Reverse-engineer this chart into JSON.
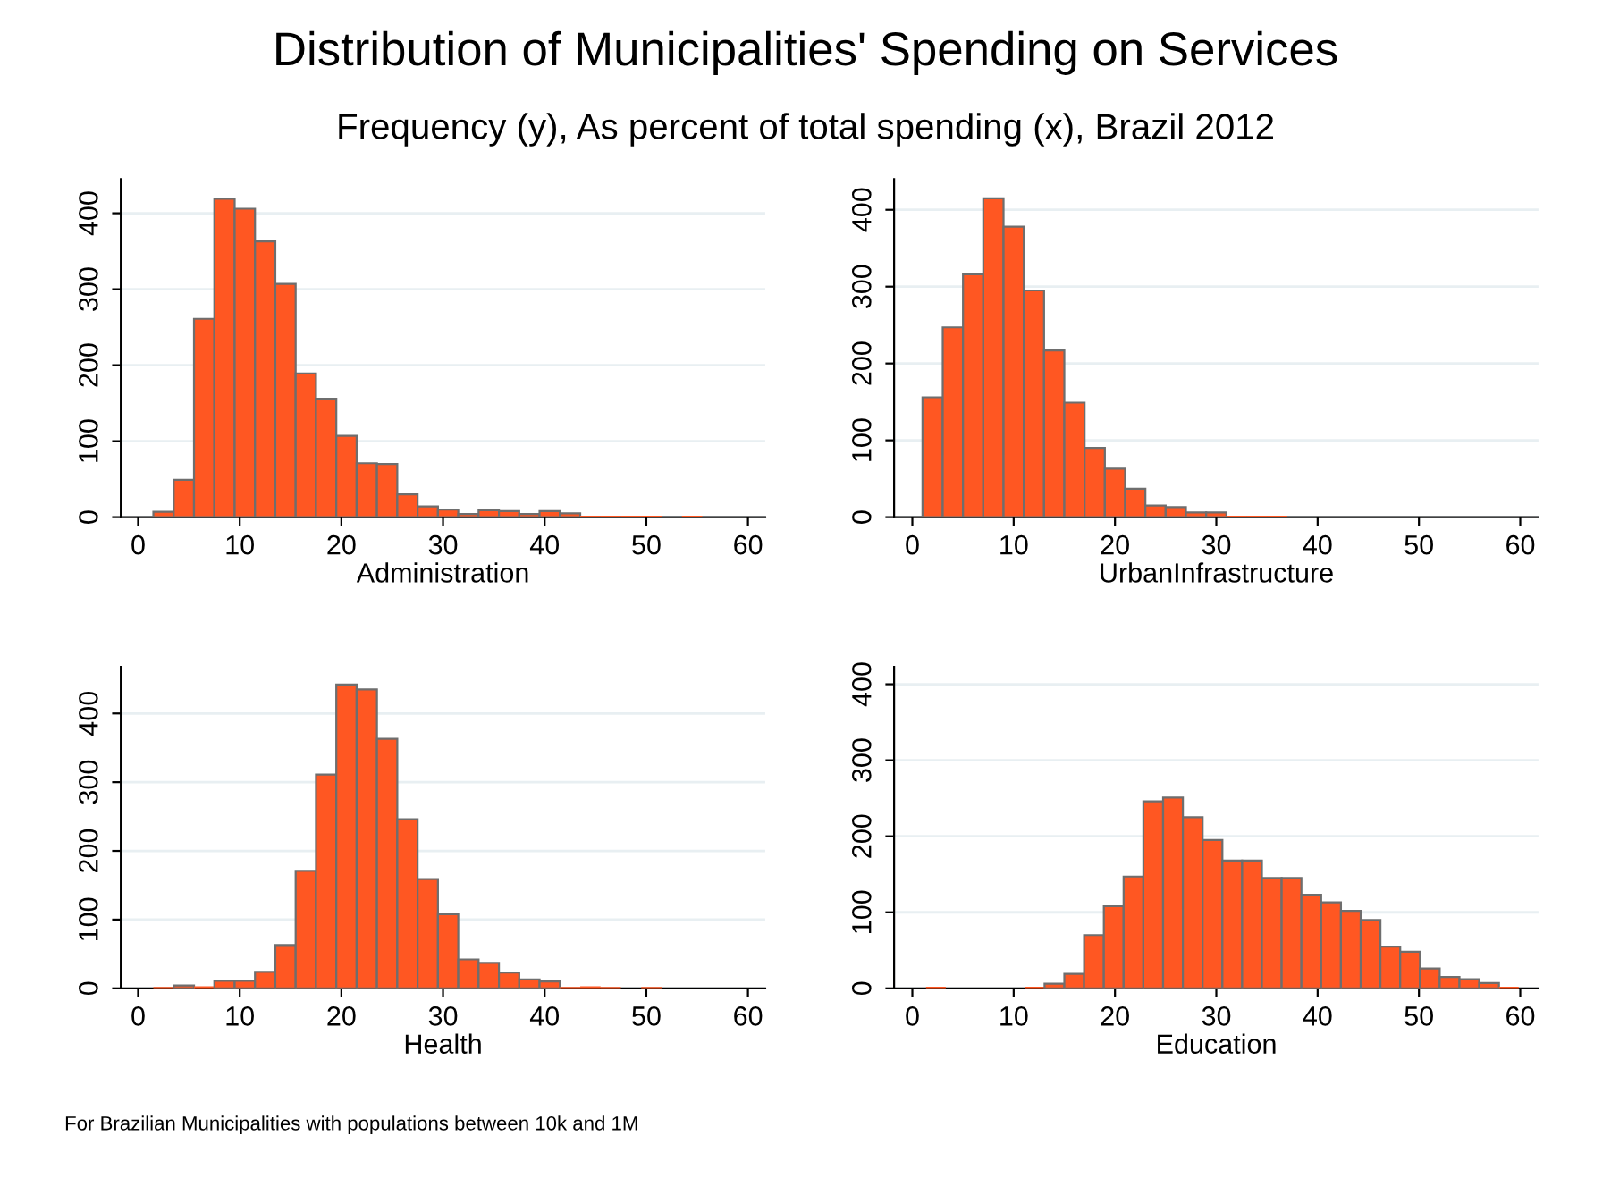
{
  "chart_data": [
    {
      "type": "histogram",
      "title": "Distribution of Municipalities' Spending on Services",
      "subtitle": "Frequency (y), As percent of total spending (x), Brazil 2012",
      "annotations": [
        "For Brazilian Municipalities with populations between 10k and 1M"
      ],
      "xlabel": "Administration",
      "color": "#ff5722",
      "bins": [
        1.5,
        3.5,
        5.5,
        7.5,
        9.5,
        11.5,
        13.5,
        15.5,
        17.5,
        19.5,
        21.5,
        23.5,
        25.5,
        27.5,
        29.5,
        31.5,
        33.5,
        35.5,
        37.5,
        39.5,
        41.5,
        43.5,
        45.5,
        47.5,
        49.5,
        51.5,
        53.5,
        55.5
      ],
      "values": [
        7,
        49,
        261,
        419,
        406,
        363,
        307,
        189,
        156,
        107,
        71,
        70,
        30,
        14,
        10,
        4,
        9,
        8,
        4,
        8,
        5,
        2,
        2,
        2,
        2,
        0,
        2
      ],
      "xlim": [
        -1.7,
        61.7
      ],
      "ylim": [
        0,
        445
      ],
      "xticks": [
        0,
        10,
        20,
        30,
        40,
        50,
        60
      ],
      "yticks": [
        0,
        100,
        200,
        300,
        400
      ],
      "grid": "y"
    },
    {
      "type": "histogram",
      "xlabel": "UrbanInfrastructure",
      "color": "#ff5722",
      "bins": [
        1,
        3,
        5,
        7,
        9,
        11,
        13,
        15,
        17,
        19,
        21,
        23,
        25,
        27,
        29,
        31,
        33,
        35,
        37
      ],
      "values": [
        156,
        247,
        316,
        415,
        378,
        295,
        217,
        149,
        90,
        63,
        37,
        15,
        13,
        6,
        6,
        2,
        2,
        2
      ],
      "xlim": [
        -1.8,
        61.8
      ],
      "ylim": [
        0,
        440
      ],
      "xticks": [
        0,
        10,
        20,
        30,
        40,
        50,
        60
      ],
      "yticks": [
        0,
        100,
        200,
        300,
        400
      ],
      "grid": "y"
    },
    {
      "type": "histogram",
      "xlabel": "Health",
      "color": "#ff5722",
      "bins": [
        1.5,
        3.5,
        5.5,
        7.5,
        9.5,
        11.5,
        13.5,
        15.5,
        17.5,
        19.5,
        21.5,
        23.5,
        25.5,
        27.5,
        29.5,
        31.5,
        33.5,
        35.5,
        37.5,
        39.5,
        41.5,
        43.5,
        45.5,
        47.5,
        49.5,
        51.5
      ],
      "values": [
        2,
        4,
        3,
        11,
        11,
        24,
        63,
        171,
        311,
        442,
        435,
        363,
        246,
        159,
        108,
        42,
        37,
        23,
        13,
        10,
        2,
        3,
        2,
        0,
        2
      ],
      "xlim": [
        -1.7,
        61.7
      ],
      "ylim": [
        0,
        468
      ],
      "xticks": [
        0,
        10,
        20,
        30,
        40,
        50,
        60
      ],
      "yticks": [
        0,
        100,
        200,
        300,
        400
      ],
      "grid": "y"
    },
    {
      "type": "histogram",
      "xlabel": "Education",
      "color": "#ff5722",
      "bins": [
        1.35,
        3.3,
        5.25,
        7.2,
        9.15,
        11.1,
        13.05,
        15.0,
        16.95,
        18.9,
        20.85,
        22.8,
        24.75,
        26.7,
        28.65,
        30.6,
        32.55,
        34.5,
        36.45,
        38.4,
        40.35,
        42.3,
        44.25,
        46.2,
        48.15,
        50.1,
        52.05,
        54.0,
        55.95,
        57.9,
        59.85
      ],
      "values": [
        2,
        0,
        0,
        0,
        0,
        2,
        6,
        19,
        70,
        108,
        147,
        246,
        251,
        225,
        195,
        168,
        168,
        145,
        145,
        123,
        113,
        102,
        90,
        55,
        48,
        26,
        15,
        12,
        7,
        2
      ],
      "xlim": [
        -1.8,
        61.8
      ],
      "ylim": [
        0,
        423
      ],
      "xticks": [
        0,
        10,
        20,
        30,
        40,
        50,
        60
      ],
      "yticks": [
        0,
        100,
        200,
        300,
        400
      ],
      "grid": "y"
    }
  ]
}
